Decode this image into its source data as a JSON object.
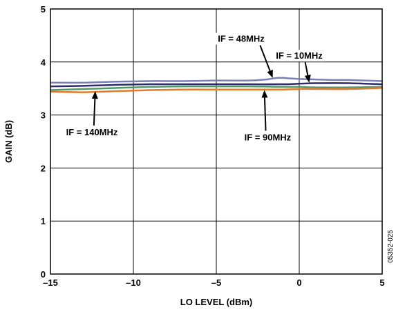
{
  "chart_data": {
    "type": "line",
    "xlabel": "LO LEVEL (dBm)",
    "ylabel": "GAIN (dB)",
    "xlim": [
      -15,
      5
    ],
    "ylim": [
      0,
      5
    ],
    "xticks": [
      -15,
      -10,
      -5,
      0,
      5
    ],
    "yticks": [
      0,
      1,
      2,
      3,
      4,
      5
    ],
    "xtick_labels": [
      "–15",
      "–10",
      "–5",
      "0",
      "5"
    ],
    "ytick_labels": [
      "0",
      "1",
      "2",
      "3",
      "4",
      "5"
    ],
    "grid": true,
    "figure_code": "05352-025",
    "series": [
      {
        "name": "IF = 48MHz",
        "color": "#7b7fb8",
        "x": [
          -15,
          -13,
          -11,
          -9,
          -7,
          -5,
          -3,
          -2,
          -1.3,
          -0.5,
          0,
          1,
          2,
          3,
          5
        ],
        "y": [
          3.61,
          3.61,
          3.63,
          3.64,
          3.64,
          3.65,
          3.65,
          3.67,
          3.7,
          3.69,
          3.68,
          3.67,
          3.66,
          3.66,
          3.64
        ]
      },
      {
        "name": "IF = 10MHz",
        "color": "#2e2a6e",
        "x": [
          -15,
          -13,
          -11,
          -9,
          -7,
          -5,
          -3,
          -1,
          0,
          1,
          3,
          5
        ],
        "y": [
          3.54,
          3.55,
          3.57,
          3.58,
          3.58,
          3.58,
          3.58,
          3.58,
          3.59,
          3.6,
          3.6,
          3.58
        ]
      },
      {
        "name": "IF = 140MHz",
        "color": "#4e9a6c",
        "x": [
          -15,
          -13,
          -11,
          -9,
          -7,
          -5,
          -3,
          -1,
          0,
          1,
          3,
          5
        ],
        "y": [
          3.47,
          3.49,
          3.51,
          3.53,
          3.54,
          3.54,
          3.54,
          3.53,
          3.53,
          3.52,
          3.52,
          3.53
        ]
      },
      {
        "name": "IF = 90MHz",
        "color": "#e8782a",
        "x": [
          -15,
          -13,
          -11,
          -9,
          -7,
          -5,
          -3,
          -1,
          0,
          1,
          3,
          5
        ],
        "y": [
          3.44,
          3.43,
          3.45,
          3.47,
          3.48,
          3.48,
          3.48,
          3.48,
          3.49,
          3.49,
          3.49,
          3.51
        ]
      }
    ],
    "annotations": [
      {
        "text": "IF = 48MHz",
        "label_x": -3.5,
        "label_y": 4.38,
        "arrow_to": [
          -1.6,
          3.7
        ]
      },
      {
        "text": "IF = 10MHz",
        "label_x": 0,
        "label_y": 4.06,
        "arrow_to": [
          0.6,
          3.61
        ]
      },
      {
        "text": "IF = 140MHz",
        "label_x": -12.5,
        "label_y": 2.62,
        "arrow_to": [
          -12.3,
          3.45
        ]
      },
      {
        "text": "IF = 90MHz",
        "label_x": -1.9,
        "label_y": 2.52,
        "arrow_to": [
          -2.1,
          3.47
        ]
      }
    ]
  }
}
